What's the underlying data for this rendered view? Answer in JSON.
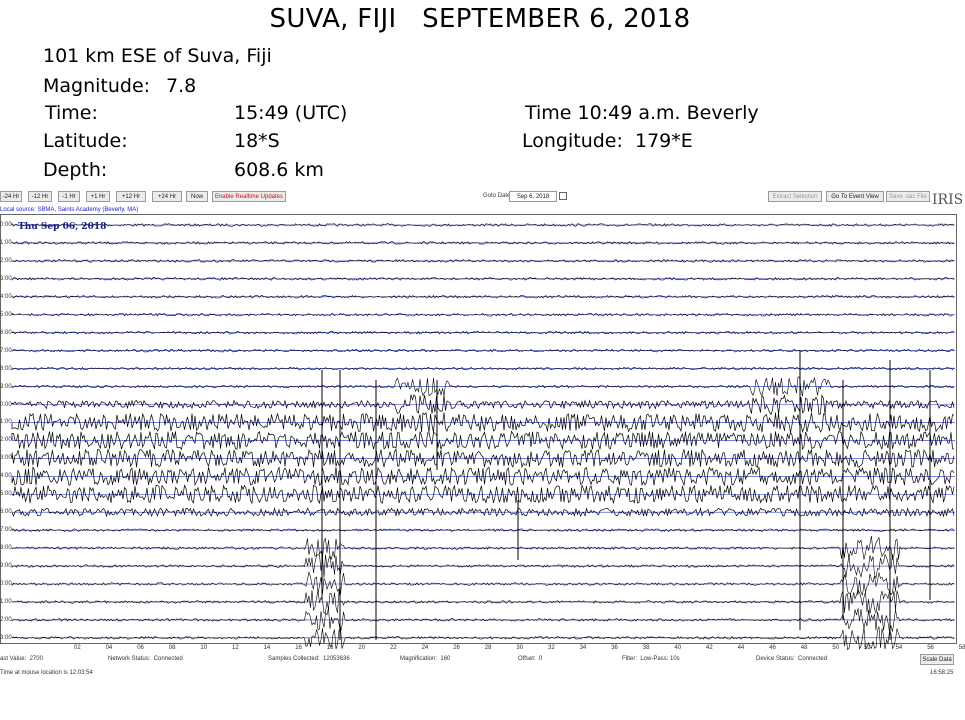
{
  "header": {
    "title": "SUVA, FIJI   SEPTEMBER 6, 2018",
    "location": "101 km ESE of Suva, Fiji",
    "magnitude_label": "Magnitude:",
    "magnitude_value": "7.8",
    "time_label": "Time:",
    "time_value": "15:49 (UTC)",
    "local_time": "Time 10:49 a.m. Beverly",
    "latitude_label": "Latitude:",
    "latitude_value": "18*S",
    "longitude": "Longitude:  179*E",
    "depth_label": "Depth:",
    "depth_value": "608.6 km"
  },
  "toolbar": {
    "buttons": [
      "-24 Hr",
      "-12 Hr",
      "-1 Hr",
      "+1 Hr",
      "+12 Hr",
      "+24 Hr",
      "Now"
    ],
    "realtime": "Enable Realtime Updates",
    "goto_label": "Goto Date:",
    "goto_value": "Sep 6, 2018",
    "extract": "Extract Selection",
    "event_view": "Go To Event View",
    "save_sac": "Save .sac File",
    "logo": "IRIS"
  },
  "plot": {
    "source": "Local source: SBMA, Saints Academy (Beverly, MA)",
    "date_label": "Thu Sep 06, 2018",
    "hour_labels": [
      "0:00",
      "1:00",
      "2:00",
      "3:00",
      "4:00",
      "5:00",
      "6:00",
      "7:00",
      "8:00",
      "9:00",
      "0:00",
      "1:00",
      "2:00",
      "3:00",
      "4:00",
      "5:00",
      "6:00",
      "7:00",
      "8:00",
      "9:00",
      "0:00",
      "1:00",
      "2:00",
      "3:00"
    ],
    "x_ticks": [
      "02",
      "04",
      "06",
      "08",
      "10",
      "12",
      "14",
      "16",
      "18",
      "20",
      "22",
      "24",
      "26",
      "28",
      "30",
      "32",
      "34",
      "36",
      "38",
      "40",
      "42",
      "44",
      "46",
      "48",
      "50",
      "52",
      "54",
      "56",
      "58"
    ]
  },
  "status": {
    "last_value": "ast Value:  2700",
    "network": "Network Status:  Connected",
    "samples": "Samples Collected:  12053636",
    "magnification": "Magnification:  160",
    "offset": "Offset:  0",
    "filter": "Filter:  Low-Pass: 10s",
    "device": "Device Status:  Connected",
    "scale_button": "Scale Data",
    "mouse_time": "Time at mouse location is 12:03:54",
    "clock": "16:58:25"
  },
  "colors": {
    "baseline": "#2233cc",
    "trace": "#000000",
    "link": "#1a1acc",
    "realtime": "#d01010"
  }
}
